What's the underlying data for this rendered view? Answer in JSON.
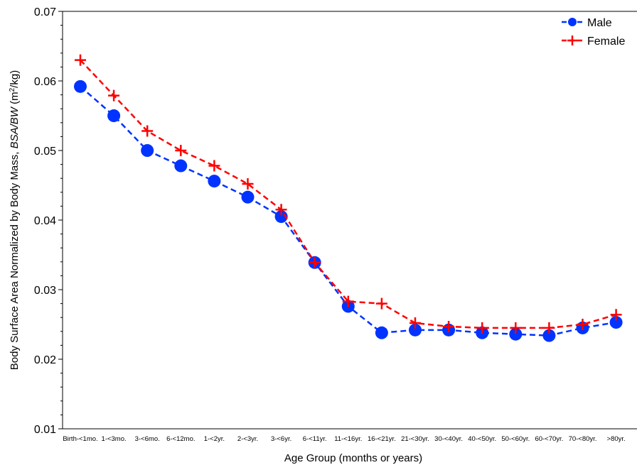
{
  "chart_data": {
    "type": "line",
    "categories": [
      "Birth-<1mo.",
      "1-<3mo.",
      "3-<6mo.",
      "6-<12mo.",
      "1-<2yr.",
      "2-<3yr.",
      "3-<6yr.",
      "6-<11yr.",
      "11-<16yr.",
      "16-<21yr.",
      "21-<30yr.",
      "30-<40yr.",
      "40-<50yr.",
      "50-<60yr.",
      "60-<70yr.",
      "70-<80yr.",
      ">80yr."
    ],
    "series": [
      {
        "name": "Male",
        "color": "#0033ff",
        "marker": "circle",
        "values": [
          0.0592,
          0.055,
          0.05,
          0.0478,
          0.0456,
          0.0433,
          0.0405,
          0.0339,
          0.0276,
          0.0238,
          0.0242,
          0.0242,
          0.0238,
          0.0236,
          0.0234,
          0.0245,
          0.0253
        ]
      },
      {
        "name": "Female",
        "color": "#ff0000",
        "marker": "plus",
        "values": [
          0.063,
          0.0579,
          0.0528,
          0.05,
          0.0478,
          0.0452,
          0.0415,
          0.0339,
          0.0283,
          0.028,
          0.0252,
          0.0247,
          0.0245,
          0.0245,
          0.0245,
          0.025,
          0.0264
        ]
      }
    ],
    "xlabel": "Age Group (months or years)",
    "ylabel_prefix": "Body Surface Area Normalized by Body Mass, ",
    "ylabel_italic": "BSA/BW",
    "ylabel_unit_a": " (m",
    "ylabel_sup": "2",
    "ylabel_unit_b": "/kg)",
    "ylim": [
      0.01,
      0.07
    ],
    "yticks": [
      "0.01",
      "0.02",
      "0.03",
      "0.04",
      "0.05",
      "0.06",
      "0.07"
    ],
    "grid": false,
    "legend_position": "top-right"
  }
}
